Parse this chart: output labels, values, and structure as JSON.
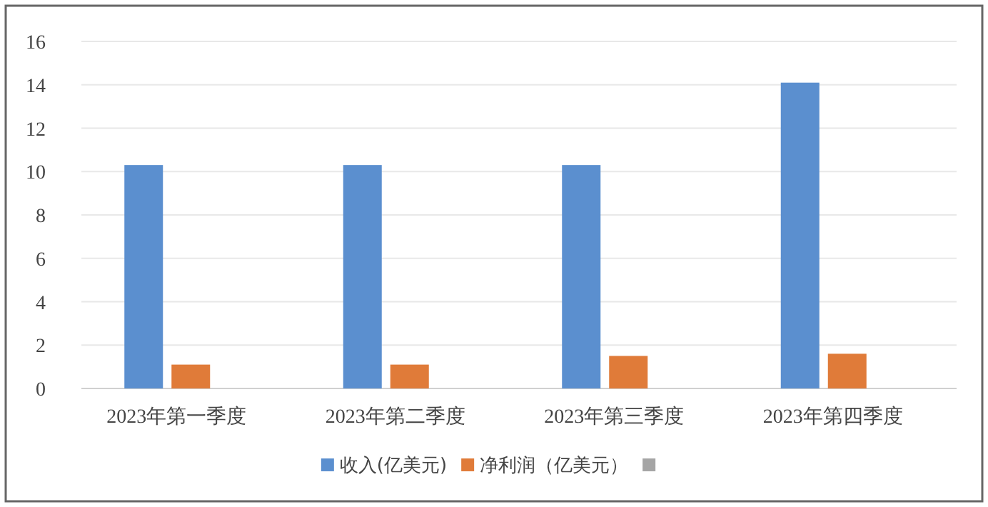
{
  "chart_data": {
    "type": "bar",
    "categories": [
      "2023年第一季度",
      "2023年第二季度",
      "2023年第三季度",
      "2023年第四季度"
    ],
    "series": [
      {
        "name": "收入(亿美元)",
        "color": "#5b8fcf",
        "values": [
          10.3,
          10.3,
          10.3,
          14.1
        ]
      },
      {
        "name": "净利润（亿美元）",
        "color": "#e07b39",
        "values": [
          1.1,
          1.1,
          1.5,
          1.6
        ]
      },
      {
        "color": "#a5a5a5",
        "values": [
          null,
          null,
          null,
          null
        ]
      }
    ],
    "ylim": [
      0,
      16
    ],
    "yticks": [
      0,
      2,
      4,
      6,
      8,
      10,
      12,
      14,
      16
    ],
    "grid": "y",
    "legend": "bottom"
  }
}
